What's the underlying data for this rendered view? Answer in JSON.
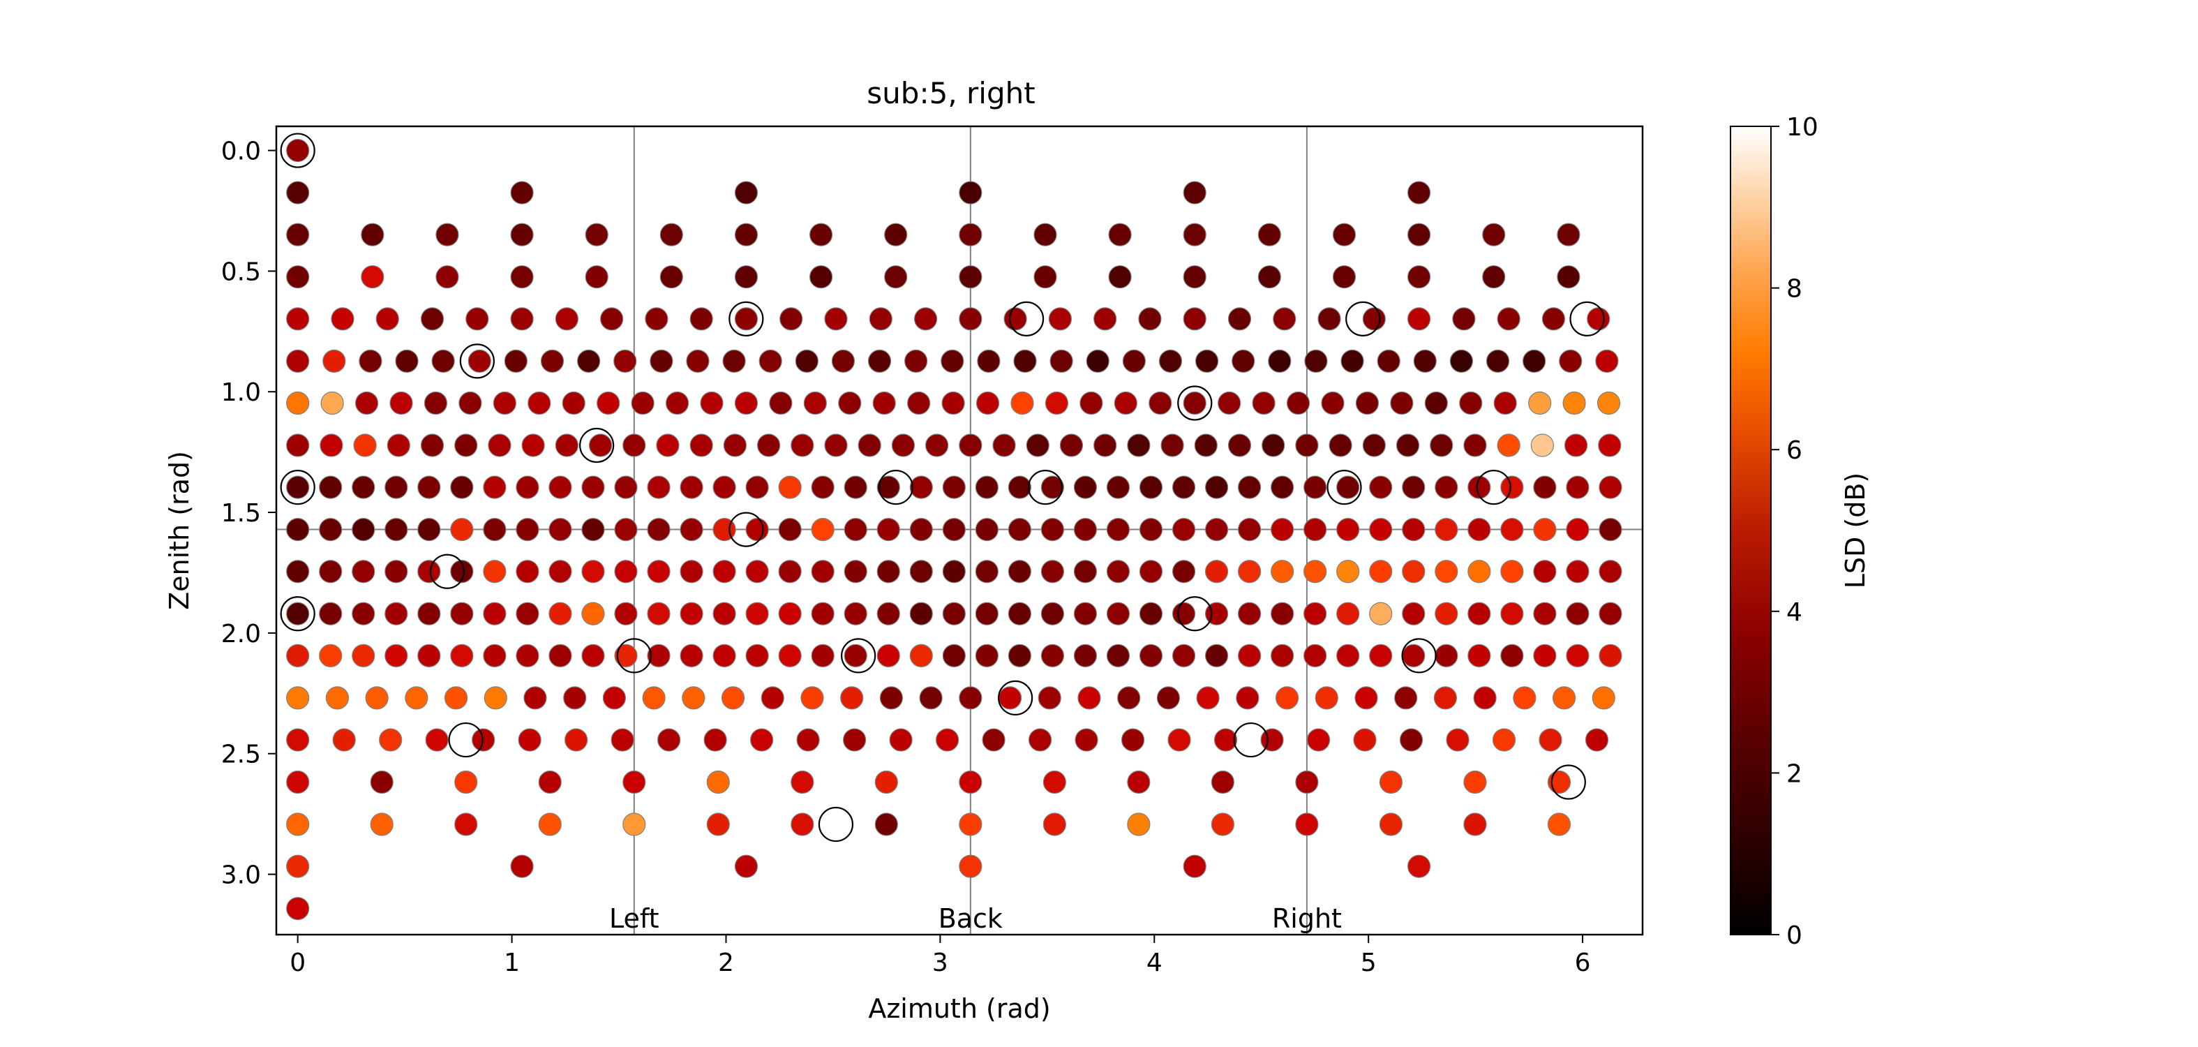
{
  "chart_data": {
    "type": "scatter",
    "title": "sub:5, right",
    "xlabel": "Azimuth (rad)",
    "ylabel": "Zenith (rad)",
    "xlim": [
      -0.1,
      6.28
    ],
    "ylim": [
      3.25,
      -0.1
    ],
    "y_inverted": true,
    "xticks": [
      0,
      1,
      2,
      3,
      4,
      5,
      6
    ],
    "yticks": [
      0.0,
      0.5,
      1.0,
      1.5,
      2.0,
      2.5,
      3.0
    ],
    "ytick_labels": [
      "0.0",
      "0.5",
      "1.0",
      "1.5",
      "2.0",
      "2.5",
      "3.0"
    ],
    "grid": false,
    "reference_lines": {
      "vertical": [
        1.5708,
        3.1416,
        4.7124
      ],
      "horizontal": [
        1.5708
      ],
      "color": "#808080"
    },
    "annotations": [
      {
        "text": "Left",
        "x": 1.5708,
        "y": 3.18
      },
      {
        "text": "Back",
        "x": 3.1416,
        "y": 3.18
      },
      {
        "text": "Right",
        "x": 4.7124,
        "y": 3.18
      }
    ],
    "colorbar": {
      "label": "LSD (dB)",
      "min": 0,
      "max": 10,
      "ticks": [
        0,
        2,
        4,
        6,
        8,
        10
      ],
      "colormap": "gist_heat"
    },
    "rows": [
      {
        "zenith": 0.0,
        "lsd": [
          3.6
        ]
      },
      {
        "zenith": 0.175,
        "lsd": [
          2.2,
          2.5,
          2.0,
          1.8,
          2.3,
          2.4
        ]
      },
      {
        "zenith": 0.349,
        "lsd": [
          2.6,
          2.4,
          2.8,
          2.5,
          2.9,
          2.7,
          2.5,
          2.6,
          2.3,
          2.8,
          2.4,
          2.6,
          2.7,
          2.5,
          2.6,
          2.4,
          2.8,
          2.7
        ]
      },
      {
        "zenith": 0.524,
        "lsd": [
          2.8,
          5.2,
          3.5,
          2.9,
          3.2,
          2.6,
          2.4,
          2.1,
          2.7,
          2.3,
          2.6,
          2.0,
          2.5,
          2.2,
          2.6,
          2.8,
          2.4,
          2.1
        ]
      },
      {
        "zenith": 0.698,
        "lsd": [
          4.6,
          4.9,
          4.5,
          2.7,
          3.7,
          3.8,
          4.2,
          3.3,
          3.4,
          3.1,
          3.5,
          3.2,
          4.0,
          3.6,
          3.8,
          3.3,
          3.7,
          4.2,
          3.9,
          2.8,
          3.5,
          2.6,
          3.4,
          2.7,
          3.2,
          4.6,
          2.9,
          3.4,
          3.3,
          4.4
        ]
      },
      {
        "zenith": 0.873,
        "lsd": [
          4.3,
          5.6,
          2.9,
          2.4,
          2.7,
          3.9,
          2.6,
          3.1,
          2.0,
          3.6,
          2.5,
          3.3,
          2.7,
          3.2,
          2.0,
          2.9,
          2.2,
          3.1,
          2.5,
          2.3,
          2.0,
          2.7,
          1.5,
          2.6,
          2.0,
          1.8,
          2.4,
          1.5,
          2.0,
          1.7,
          2.5,
          2.0,
          1.4,
          1.9,
          1.6,
          3.4,
          4.6
        ]
      },
      {
        "zenith": 1.047,
        "lsd": [
          7.3,
          8.3,
          4.2,
          4.6,
          3.3,
          3.4,
          4.2,
          4.5,
          4.1,
          4.8,
          3.8,
          4.0,
          4.4,
          4.6,
          3.3,
          4.2,
          3.5,
          4.0,
          3.6,
          4.1,
          4.6,
          6.3,
          5.2,
          3.6,
          4.2,
          3.4,
          3.3,
          3.6,
          3.6,
          3.2,
          3.4,
          3.0,
          3.1,
          2.3,
          3.3,
          4.2,
          8.1,
          7.6,
          7.6
        ]
      },
      {
        "zenith": 1.222,
        "lsd": [
          3.9,
          4.8,
          6.0,
          4.3,
          3.2,
          3.1,
          4.2,
          4.5,
          4.1,
          3.9,
          3.6,
          4.6,
          4.1,
          3.7,
          3.4,
          3.8,
          3.6,
          3.2,
          3.4,
          3.5,
          3.3,
          3.3,
          2.3,
          3.0,
          2.8,
          2.0,
          2.9,
          2.2,
          2.6,
          2.0,
          2.8,
          2.5,
          2.5,
          2.4,
          2.7,
          3.2,
          6.5,
          8.9,
          4.7,
          4.8
        ]
      },
      {
        "zenith": 1.396,
        "lsd": [
          2.2,
          2.4,
          2.6,
          2.8,
          3.1,
          2.6,
          4.5,
          3.9,
          4.1,
          3.8,
          3.7,
          4.2,
          3.9,
          4.0,
          3.6,
          6.1,
          3.3,
          2.8,
          2.5,
          3.6,
          3.1,
          2.6,
          2.5,
          2.9,
          2.3,
          2.5,
          2.2,
          2.4,
          2.0,
          2.5,
          2.4,
          3.0,
          2.8,
          3.4,
          2.7,
          3.4,
          3.9,
          5.3,
          3.2,
          4.0,
          4.3
        ]
      },
      {
        "zenith": 1.571,
        "lsd": [
          2.3,
          2.6,
          2.1,
          2.6,
          2.4,
          5.8,
          3.1,
          3.3,
          3.6,
          2.5,
          3.8,
          3.2,
          3.7,
          5.5,
          4.4,
          3.1,
          6.3,
          3.5,
          3.7,
          3.2,
          3.0,
          3.0,
          3.1,
          3.2,
          3.2,
          3.3,
          3.2,
          3.8,
          3.6,
          3.6,
          4.6,
          4.3,
          4.8,
          4.9,
          4.5,
          5.5,
          4.6,
          5.3,
          6.0,
          5.0,
          3.0
        ]
      },
      {
        "zenith": 1.745,
        "lsd": [
          2.4,
          3.1,
          3.6,
          3.4,
          4.2,
          2.7,
          6.0,
          4.5,
          4.4,
          5.2,
          4.9,
          5.0,
          4.3,
          4.7,
          4.6,
          3.8,
          4.0,
          3.2,
          2.8,
          2.7,
          2.3,
          2.9,
          2.6,
          3.3,
          2.9,
          3.5,
          3.7,
          3.0,
          5.6,
          5.9,
          6.8,
          6.6,
          7.6,
          6.2,
          5.9,
          6.4,
          7.2,
          6.3,
          4.5,
          4.6,
          4.2
        ]
      },
      {
        "zenith": 1.92,
        "lsd": [
          2.1,
          3.0,
          3.4,
          4.0,
          3.2,
          3.7,
          4.6,
          3.8,
          5.6,
          7.0,
          4.4,
          5.2,
          4.8,
          4.6,
          5.1,
          5.0,
          4.0,
          3.7,
          3.2,
          2.3,
          3.0,
          2.9,
          2.6,
          2.7,
          3.2,
          3.5,
          2.6,
          3.3,
          4.1,
          3.7,
          3.4,
          4.6,
          5.5,
          8.4,
          4.4,
          5.6,
          4.5,
          5.2,
          4.2,
          3.5,
          3.7
        ]
      },
      {
        "zenith": 2.094,
        "lsd": [
          5.5,
          6.2,
          5.8,
          5.1,
          4.6,
          5.2,
          4.5,
          4.3,
          3.9,
          4.6,
          5.7,
          4.3,
          4.5,
          4.8,
          4.6,
          5.1,
          4.0,
          3.7,
          5.0,
          5.8,
          2.8,
          3.2,
          2.5,
          3.3,
          3.0,
          2.7,
          3.2,
          3.6,
          2.6,
          4.6,
          4.2,
          4.4,
          4.7,
          5.0,
          4.2,
          3.8,
          4.8,
          3.5,
          4.9,
          5.1,
          5.4
        ]
      },
      {
        "zenith": 2.269,
        "lsd": [
          7.4,
          7.1,
          6.8,
          7.0,
          6.6,
          7.4,
          4.3,
          4.1,
          4.8,
          6.7,
          6.9,
          6.5,
          4.5,
          6.2,
          5.6,
          3.1,
          2.9,
          3.3,
          4.8,
          3.9,
          5.0,
          3.2,
          3.1,
          5.1,
          4.6,
          6.1,
          5.9,
          5.0,
          3.5,
          5.5,
          4.8,
          6.3,
          6.8,
          7.2
        ]
      },
      {
        "zenith": 2.443,
        "lsd": [
          5.2,
          5.6,
          6.0,
          5.1,
          4.5,
          4.8,
          5.4,
          4.6,
          4.2,
          4.4,
          5.0,
          4.3,
          3.9,
          4.6,
          5.0,
          3.5,
          4.2,
          4.1,
          3.8,
          5.2,
          4.7,
          4.4,
          5.0,
          5.4,
          3.2,
          5.3,
          6.1,
          5.5,
          4.7
        ]
      },
      {
        "zenith": 2.618,
        "lsd": [
          5.1,
          3.4,
          6.1,
          4.5,
          5.0,
          7.1,
          5.2,
          5.6,
          5.0,
          5.2,
          4.6,
          3.9,
          4.2,
          6.0,
          6.2,
          5.9
        ]
      },
      {
        "zenith": 2.793,
        "lsd": [
          7.0,
          6.9,
          5.2,
          6.6,
          8.0,
          5.6,
          5.3,
          2.8,
          6.2,
          5.5,
          7.5,
          5.8,
          5.1,
          5.7,
          5.4,
          6.6
        ]
      },
      {
        "zenith": 2.967,
        "lsd": [
          5.8,
          4.5,
          4.6,
          6.0,
          4.7,
          5.2
        ]
      },
      {
        "zenith": 3.142,
        "lsd": [
          5.0
        ]
      }
    ],
    "circled_points": [
      [
        0.0,
        0.0
      ],
      [
        2.094,
        0.698
      ],
      [
        3.403,
        0.698
      ],
      [
        4.974,
        0.698
      ],
      [
        6.021,
        0.698
      ],
      [
        0.838,
        0.873
      ],
      [
        4.189,
        1.047
      ],
      [
        1.396,
        1.222
      ],
      [
        0.0,
        1.396
      ],
      [
        2.793,
        1.396
      ],
      [
        3.491,
        1.396
      ],
      [
        4.887,
        1.396
      ],
      [
        5.585,
        1.396
      ],
      [
        2.094,
        1.571
      ],
      [
        0.698,
        1.745
      ],
      [
        0.0,
        1.92
      ],
      [
        4.189,
        1.92
      ],
      [
        1.571,
        2.094
      ],
      [
        2.618,
        2.094
      ],
      [
        5.236,
        2.094
      ],
      [
        3.351,
        2.269
      ],
      [
        0.785,
        2.443
      ],
      [
        4.451,
        2.443
      ],
      [
        5.934,
        2.618
      ],
      [
        2.513,
        2.793
      ]
    ]
  }
}
